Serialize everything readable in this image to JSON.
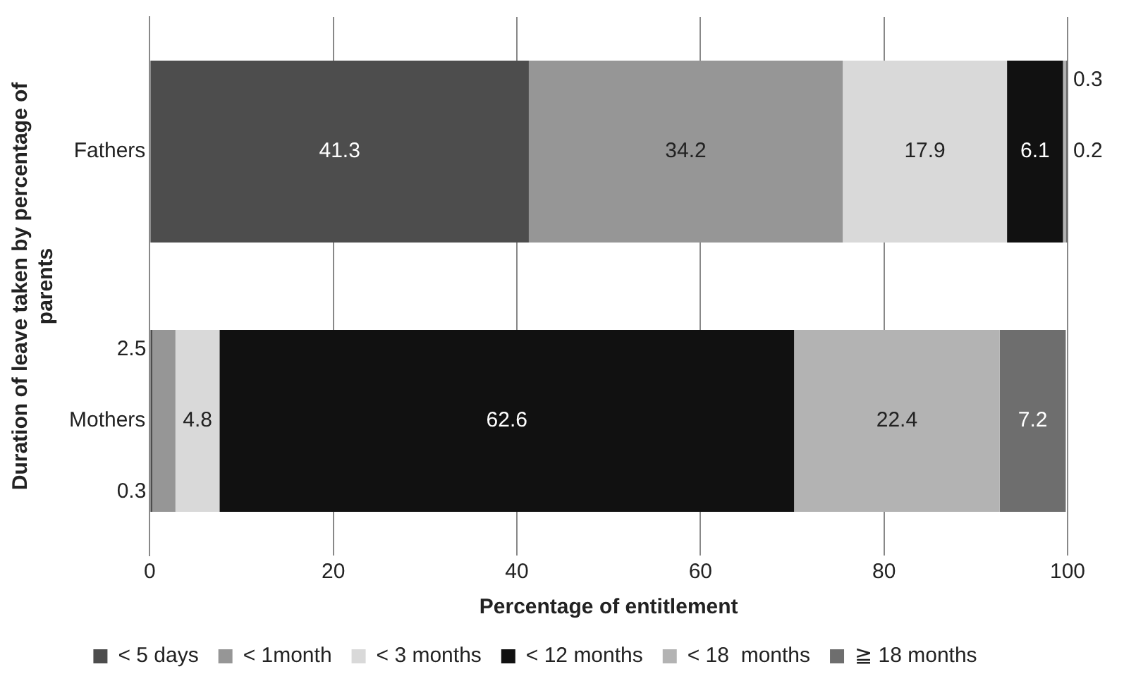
{
  "chart_data": {
    "type": "bar",
    "orientation": "horizontal",
    "stacked": true,
    "categories": [
      "Fathers",
      "Mothers"
    ],
    "series": [
      {
        "name": "< 5 days",
        "color": "#4d4d4d",
        "values": [
          41.3,
          0.3
        ]
      },
      {
        "name": "< 1month",
        "color": "#969696",
        "values": [
          34.2,
          2.5
        ]
      },
      {
        "name": "< 3 months",
        "color": "#d9d9d9",
        "values": [
          17.9,
          4.8
        ]
      },
      {
        "name": "< 12 months",
        "color": "#111111",
        "values": [
          6.1,
          62.6
        ]
      },
      {
        "name": "< 18  months",
        "color": "#b3b3b3",
        "values": [
          0.3,
          22.4
        ]
      },
      {
        "name": "≧ 18 months",
        "color": "#6e6e6e",
        "values": [
          0.2,
          7.2
        ]
      }
    ],
    "xlim": [
      0,
      100
    ],
    "xticks": [
      0,
      20,
      40,
      60,
      80,
      100
    ],
    "grid": "x",
    "legend": "bottom",
    "data_labels": true,
    "xlabel": "Percentage of entitlement",
    "ylabel": "Duration of leave taken by percentage of parents"
  }
}
